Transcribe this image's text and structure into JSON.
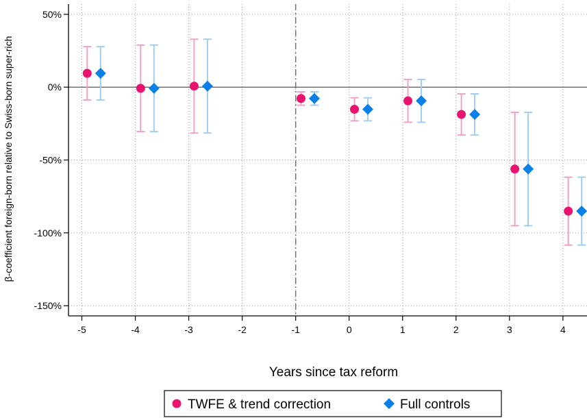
{
  "chart_data": {
    "type": "scatter",
    "subtype": "coefficient-plot-with-95ci",
    "title": "",
    "xlabel": "Years since tax reform",
    "ylabel": "β-coefficient foreign-born relative to Swiss-born super-rich",
    "xlim": [
      -5.25,
      4.45
    ],
    "ylim": [
      -157,
      57
    ],
    "x_ticks": [
      -5,
      -4,
      -3,
      -2,
      -1,
      0,
      1,
      2,
      3,
      4
    ],
    "x_tick_labels": [
      "-5",
      "-4",
      "-3",
      "-2",
      "-1",
      "0",
      "1",
      "2",
      "3",
      "4"
    ],
    "y_ticks": [
      50,
      0,
      -50,
      -100,
      -150
    ],
    "y_tick_labels": [
      "50%",
      "0%",
      "-50%",
      "-100%",
      "-150%"
    ],
    "reference_line_y": 0,
    "reference_line_x": -1,
    "grid": true,
    "legend_position": "bottom",
    "series": [
      {
        "name": "TWFE & trend correction",
        "marker": "circle",
        "color": "#e8126f",
        "ci_color": "#f2a0c5",
        "offset": 0.1,
        "points": [
          {
            "x": -5,
            "y": 9.5,
            "lo": -8.8,
            "hi": 27.8
          },
          {
            "x": -4,
            "y": -0.8,
            "lo": -30.5,
            "hi": 28.9
          },
          {
            "x": -3,
            "y": 0.7,
            "lo": -31.5,
            "hi": 32.9
          },
          {
            "x": -1,
            "y": -7.8,
            "lo": -12.4,
            "hi": -3.2
          },
          {
            "x": 0,
            "y": -15.2,
            "lo": -23.1,
            "hi": -7.3
          },
          {
            "x": 1,
            "y": -9.4,
            "lo": -24.1,
            "hi": 5.3
          },
          {
            "x": 2,
            "y": -18.7,
            "lo": -32.8,
            "hi": -4.6
          },
          {
            "x": 3,
            "y": -56.2,
            "lo": -95.1,
            "hi": -17.3
          },
          {
            "x": 4,
            "y": -85.1,
            "lo": -108.4,
            "hi": -61.8
          }
        ]
      },
      {
        "name": "Full controls",
        "marker": "diamond",
        "color": "#0a7fe8",
        "ci_color": "#9fcdf4",
        "offset": 0.35,
        "points": [
          {
            "x": -5,
            "y": 9.5,
            "lo": -8.8,
            "hi": 27.8
          },
          {
            "x": -4,
            "y": -0.8,
            "lo": -30.5,
            "hi": 28.9
          },
          {
            "x": -3,
            "y": 0.7,
            "lo": -31.5,
            "hi": 32.9
          },
          {
            "x": -1,
            "y": -7.8,
            "lo": -12.4,
            "hi": -3.2
          },
          {
            "x": 0,
            "y": -15.2,
            "lo": -23.1,
            "hi": -7.3
          },
          {
            "x": 1,
            "y": -9.4,
            "lo": -24.1,
            "hi": 5.3
          },
          {
            "x": 2,
            "y": -18.7,
            "lo": -32.8,
            "hi": -4.6
          },
          {
            "x": 3,
            "y": -56.2,
            "lo": -95.1,
            "hi": -17.3
          },
          {
            "x": 4,
            "y": -85.1,
            "lo": -108.4,
            "hi": -61.8
          }
        ]
      }
    ]
  }
}
